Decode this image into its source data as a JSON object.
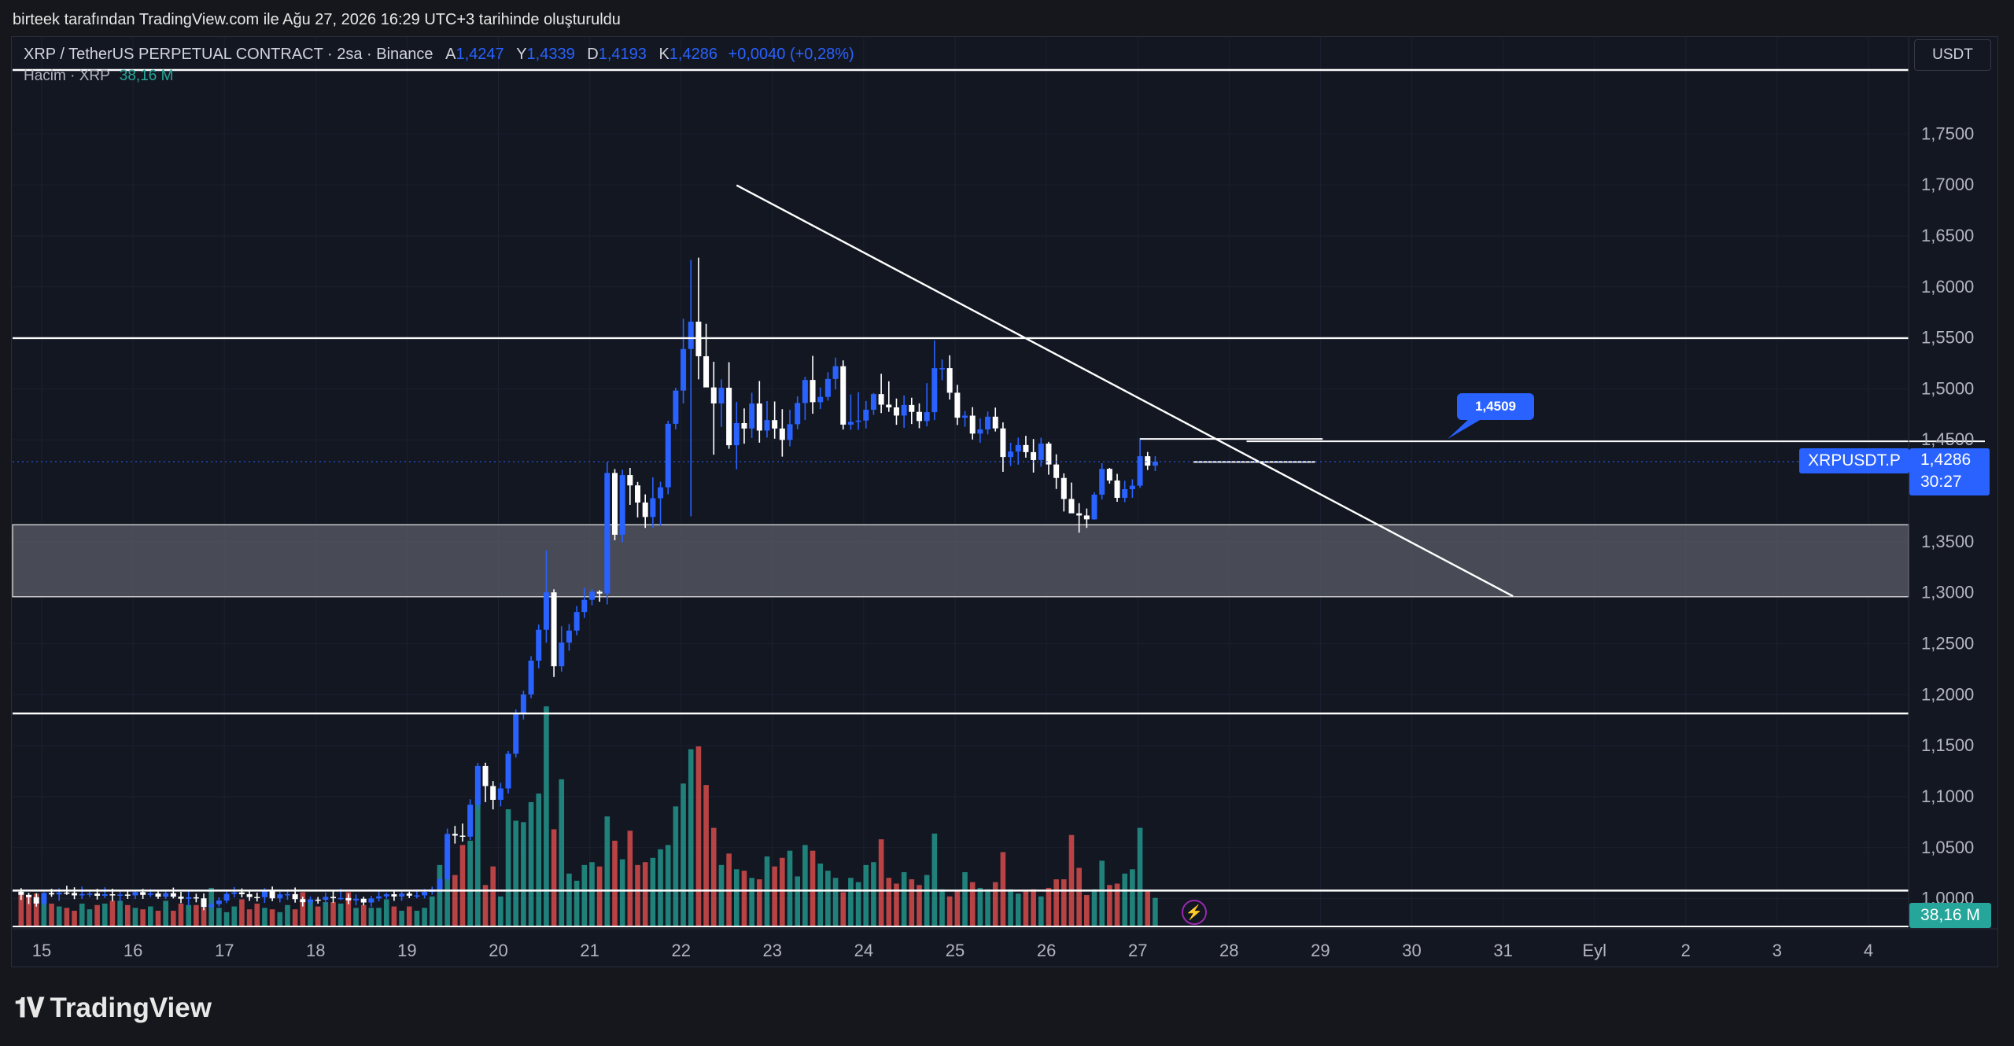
{
  "attribution": "birteek tarafından TradingView.com ile Ağu 27, 2026 16:29 UTC+3 tarihinde oluşturuldu",
  "legend": {
    "symbol": "XRP / TetherUS PERPETUAL CONTRACT · 2sa · Binance",
    "open_label": "A",
    "open": "1,4247",
    "high_label": "Y",
    "high": "1,4339",
    "low_label": "D",
    "low": "1,4193",
    "close_label": "K",
    "close": "1,4286",
    "change": "+0,0040 (+0,28%)"
  },
  "volume_legend": {
    "label": "Hacim · XRP",
    "value": "38,16 M"
  },
  "currency": "USDT",
  "symbol_tag": "XRPUSDT.P",
  "price_tag": {
    "price": "1,4286",
    "countdown": "30:27"
  },
  "volume_tag": "38,16 M",
  "annotation": "1,4509",
  "logo": "TradingView",
  "colors": {
    "up": "#2962ff",
    "down": "#ffffff",
    "vol_up": "#26a69a",
    "vol_down": "#ef5350",
    "background": "#131722",
    "zone": "#5d606b"
  },
  "chart_data": {
    "type": "candlestick",
    "x_tick_labels": [
      "15",
      "16",
      "17",
      "18",
      "19",
      "20",
      "21",
      "22",
      "23",
      "24",
      "25",
      "26",
      "27",
      "28",
      "29",
      "30",
      "31",
      "Eyl",
      "2",
      "3",
      "4"
    ],
    "y_tick_labels": [
      "1,7500",
      "1,7000",
      "1,6500",
      "1,6000",
      "1,5500",
      "1,5000",
      "1,4500",
      "1,3500",
      "1,3000",
      "1,2500",
      "1,2000",
      "1,1500",
      "1,1000",
      "1,0500",
      "1,0000"
    ],
    "y_ticks": [
      1.75,
      1.7,
      1.65,
      1.6,
      1.55,
      1.5,
      1.45,
      1.35,
      1.3,
      1.25,
      1.2,
      1.15,
      1.1,
      1.05,
      1.0
    ],
    "ylim": [
      0.9727,
      1.8135
    ],
    "candle_interval_hours": 2,
    "candles": [
      [
        1.0068,
        1.0103,
        0.9987,
        1.0037
      ],
      [
        1.0037,
        1.0056,
        0.9947,
        1.0014
      ],
      [
        1.0014,
        1.0052,
        0.9922,
        0.9952
      ],
      [
        0.9952,
        1.0064,
        0.993,
        1.0055
      ],
      [
        1.0055,
        1.0096,
        1.0018,
        1.0041
      ],
      [
        1.0041,
        1.0101,
        0.9978,
        1.0059
      ],
      [
        1.0059,
        1.0126,
        1.0037,
        1.0055
      ],
      [
        1.0055,
        1.0111,
        0.9995,
        1.0032
      ],
      [
        1.0032,
        1.0118,
        0.9998,
        1.0045
      ],
      [
        1.0045,
        1.0071,
        1.0015,
        1.0049
      ],
      [
        1.0049,
        1.0096,
        0.9991,
        1.0028
      ],
      [
        1.0028,
        1.0111,
        1.0006,
        1.0043
      ],
      [
        1.0043,
        1.0097,
        0.9975,
        1.0031
      ],
      [
        1.0031,
        1.0069,
        0.9966,
        1.004
      ],
      [
        1.004,
        1.0087,
        0.9997,
        1.0032
      ],
      [
        1.0032,
        1.0081,
        0.9996,
        1.0064
      ],
      [
        1.0064,
        1.0096,
        0.9997,
        1.0037
      ],
      [
        1.0037,
        1.0093,
        1.0016,
        1.005
      ],
      [
        1.005,
        1.0076,
        0.9998,
        1.0019
      ],
      [
        1.0019,
        1.0079,
        0.9996,
        1.0053
      ],
      [
        1.0053,
        1.0108,
        1.0002,
        1.0019
      ],
      [
        1.0019,
        1.0067,
        0.9956,
        0.9999
      ],
      [
        0.9999,
        1.0087,
        0.9931,
        1.0013
      ],
      [
        1.0013,
        1.0048,
        0.9964,
        1.0003
      ],
      [
        1.0003,
        1.005,
        0.9886,
        0.9917
      ],
      [
        0.9917,
        0.9985,
        0.9892,
        0.9946
      ],
      [
        0.9946,
        1.0012,
        0.9922,
        0.9981
      ],
      [
        0.9981,
        1.0068,
        0.9956,
        1.0046
      ],
      [
        1.0046,
        1.0114,
        1.0012,
        1.0061
      ],
      [
        1.0061,
        1.01,
        1.0012,
        1.0043
      ],
      [
        1.0043,
        1.0086,
        0.9978,
        1.0016
      ],
      [
        1.0016,
        1.0058,
        0.9972,
        1.0014
      ],
      [
        1.0014,
        1.0103,
        0.9958,
        1.0083
      ],
      [
        1.0083,
        1.0119,
        0.9976,
        1.0003
      ],
      [
        1.0003,
        1.0068,
        0.9963,
        1.0042
      ],
      [
        1.0042,
        1.0088,
        0.9988,
        1.0044
      ],
      [
        1.0044,
        1.0109,
        0.9961,
        0.9995
      ],
      [
        0.9995,
        1.0018,
        0.9923,
        0.9965
      ],
      [
        0.9965,
        1.0021,
        0.9933,
        0.999
      ],
      [
        0.999,
        1.0016,
        0.995,
        0.9988
      ],
      [
        0.9988,
        1.006,
        0.9939,
        1.0017
      ],
      [
        1.0017,
        1.0077,
        0.9958,
        1.0004
      ],
      [
        1.0004,
        1.0096,
        0.9986,
        1.0006
      ],
      [
        1.0006,
        1.0048,
        0.9945,
        0.9983
      ],
      [
        0.9983,
        1.0041,
        0.9934,
        0.9999
      ],
      [
        0.9999,
        1.0018,
        0.9934,
        0.9962
      ],
      [
        0.9962,
        1.0027,
        0.9918,
        1.0002
      ],
      [
        1.0002,
        1.0087,
        0.9973,
        1.0022
      ],
      [
        1.0022,
        1.0056,
        0.9999,
        1.0043
      ],
      [
        1.0043,
        1.0082,
        0.9978,
        1.0021
      ],
      [
        1.0021,
        1.0068,
        0.9979,
        1.0049
      ],
      [
        1.0049,
        1.0068,
        1.0005,
        1.0029
      ],
      [
        1.0029,
        1.0089,
        1.0003,
        1.0032
      ],
      [
        1.0032,
        1.0094,
        1.0002,
        1.0066
      ],
      [
        1.0066,
        1.0117,
        1.0038,
        1.0091
      ],
      [
        1.0091,
        1.0212,
        1.0057,
        1.0191
      ],
      [
        1.0191,
        1.0687,
        1.0158,
        1.0635
      ],
      [
        1.0635,
        1.0713,
        1.054,
        1.0618
      ],
      [
        1.0618,
        1.0736,
        1.0559,
        1.0608
      ],
      [
        1.0608,
        1.0974,
        1.0574,
        1.0921
      ],
      [
        1.0921,
        1.1331,
        1.0875,
        1.1301
      ],
      [
        1.1301,
        1.1333,
        1.0946,
        1.1104
      ],
      [
        1.1104,
        1.1153,
        1.0875,
        1.0969
      ],
      [
        1.0969,
        1.1135,
        1.0905,
        1.1081
      ],
      [
        1.1081,
        1.1448,
        1.1031,
        1.1421
      ],
      [
        1.1421,
        1.1855,
        1.1384,
        1.1819
      ],
      [
        1.1819,
        1.2039,
        1.1757,
        1.2002
      ],
      [
        1.2002,
        1.2378,
        1.1965,
        1.2334
      ],
      [
        1.2334,
        1.2688,
        1.2259,
        1.2637
      ],
      [
        1.2637,
        1.3416,
        1.2511,
        1.3004
      ],
      [
        1.3004,
        1.3034,
        1.2174,
        1.2279
      ],
      [
        1.2279,
        1.2672,
        1.2226,
        1.2512
      ],
      [
        1.2512,
        1.2693,
        1.2432,
        1.2629
      ],
      [
        1.2629,
        1.2869,
        1.2583,
        1.2811
      ],
      [
        1.2811,
        1.3049,
        1.2753,
        1.2931
      ],
      [
        1.2931,
        1.3034,
        1.2877,
        1.301
      ],
      [
        1.301,
        1.3026,
        1.2912,
        1.2992
      ],
      [
        1.2992,
        1.4283,
        1.2886,
        1.4175
      ],
      [
        1.4175,
        1.4213,
        1.3515,
        1.3569
      ],
      [
        1.3569,
        1.4207,
        1.3495,
        1.4154
      ],
      [
        1.4154,
        1.4224,
        1.3862,
        1.4053
      ],
      [
        1.4053,
        1.4087,
        1.3739,
        1.3885
      ],
      [
        1.3885,
        1.3965,
        1.3636,
        1.3743
      ],
      [
        1.3743,
        1.4132,
        1.364,
        1.3927
      ],
      [
        1.3927,
        1.4089,
        1.3658,
        1.4034
      ],
      [
        1.4034,
        1.4687,
        1.3966,
        1.4657
      ],
      [
        1.4657,
        1.5011,
        1.4603,
        1.4983
      ],
      [
        1.4983,
        1.5688,
        1.4856,
        1.5391
      ],
      [
        1.5391,
        1.6265,
        1.3751,
        1.5659
      ],
      [
        1.5659,
        1.6287,
        1.5093,
        1.532
      ],
      [
        1.532,
        1.5638,
        1.5017,
        1.5014
      ],
      [
        1.5014,
        1.5265,
        1.4354,
        1.4857
      ],
      [
        1.4857,
        1.5093,
        1.4627,
        1.5011
      ],
      [
        1.5011,
        1.5261,
        1.4412,
        1.4447
      ],
      [
        1.4447,
        1.4873,
        1.4211,
        1.4664
      ],
      [
        1.4664,
        1.4808,
        1.4462,
        1.4611
      ],
      [
        1.4611,
        1.4962,
        1.4518,
        1.4856
      ],
      [
        1.4856,
        1.5077,
        1.4472,
        1.4591
      ],
      [
        1.4591,
        1.488,
        1.4522,
        1.4693
      ],
      [
        1.4693,
        1.4876,
        1.4511,
        1.4611
      ],
      [
        1.4611,
        1.4801,
        1.4335,
        1.4499
      ],
      [
        1.4499,
        1.4795,
        1.4436,
        1.4653
      ],
      [
        1.4653,
        1.4926,
        1.4604,
        1.4861
      ],
      [
        1.4861,
        1.5118,
        1.4694,
        1.5087
      ],
      [
        1.5087,
        1.5324,
        1.4756,
        1.4869
      ],
      [
        1.4869,
        1.5014,
        1.4802,
        1.4921
      ],
      [
        1.4921,
        1.5162,
        1.4885,
        1.5097
      ],
      [
        1.5097,
        1.5306,
        1.4994,
        1.5222
      ],
      [
        1.5222,
        1.5279,
        1.4601,
        1.4649
      ],
      [
        1.4649,
        1.4945,
        1.4598,
        1.4676
      ],
      [
        1.4676,
        1.4967,
        1.4598,
        1.4689
      ],
      [
        1.4689,
        1.4881,
        1.4612,
        1.4795
      ],
      [
        1.4795,
        1.4959,
        1.4745,
        1.4948
      ],
      [
        1.4948,
        1.5148,
        1.4762,
        1.4845
      ],
      [
        1.4845,
        1.5074,
        1.4774,
        1.4818
      ],
      [
        1.4818,
        1.4905,
        1.4647,
        1.4738
      ],
      [
        1.4738,
        1.4935,
        1.4617,
        1.4842
      ],
      [
        1.4842,
        1.4913,
        1.4655,
        1.4774
      ],
      [
        1.4774,
        1.4857,
        1.4614,
        1.4684
      ],
      [
        1.4684,
        1.5056,
        1.4632,
        1.4771
      ],
      [
        1.4771,
        1.5474,
        1.4694,
        1.5203
      ],
      [
        1.5203,
        1.5289,
        1.5084,
        1.5203
      ],
      [
        1.5203,
        1.5329,
        1.4895,
        1.4962
      ],
      [
        1.4962,
        1.5039,
        1.4645,
        1.4717
      ],
      [
        1.4717,
        1.4782,
        1.4628,
        1.4737
      ],
      [
        1.4737,
        1.4821,
        1.4503,
        1.4561
      ],
      [
        1.4561,
        1.4711,
        1.4472,
        1.4602
      ],
      [
        1.4602,
        1.4778,
        1.4553,
        1.4727
      ],
      [
        1.4727,
        1.4816,
        1.4582,
        1.4612
      ],
      [
        1.4612,
        1.4671,
        1.4186,
        1.4331
      ],
      [
        1.4331,
        1.4472,
        1.4243,
        1.4385
      ],
      [
        1.4385,
        1.4522,
        1.4256,
        1.4449
      ],
      [
        1.4449,
        1.4539,
        1.4325,
        1.4379
      ],
      [
        1.4379,
        1.4508,
        1.4179,
        1.4302
      ],
      [
        1.4302,
        1.4521,
        1.4236,
        1.4463
      ],
      [
        1.4463,
        1.448,
        1.4158,
        1.4258
      ],
      [
        1.4258,
        1.4358,
        1.4018,
        1.4126
      ],
      [
        1.4126,
        1.4171,
        1.3797,
        1.392
      ],
      [
        1.392,
        1.4081,
        1.3786,
        1.3779
      ],
      [
        1.3779,
        1.3878,
        1.3589,
        1.3758
      ],
      [
        1.3758,
        1.3826,
        1.3636,
        1.372
      ],
      [
        1.372,
        1.3986,
        1.3716,
        1.3962
      ],
      [
        1.3962,
        1.4271,
        1.3915,
        1.4215
      ],
      [
        1.4215,
        1.4224,
        1.4071,
        1.4101
      ],
      [
        1.4101,
        1.4166,
        1.3892,
        1.3931
      ],
      [
        1.3931,
        1.4099,
        1.3888,
        1.4016
      ],
      [
        1.4016,
        1.4113,
        1.3932,
        1.405
      ],
      [
        1.405,
        1.4519,
        1.4028,
        1.4339
      ],
      [
        1.4339,
        1.4381,
        1.4204,
        1.4247
      ],
      [
        1.4247,
        1.4339,
        1.4193,
        1.4286
      ]
    ],
    "volume_ylim": [
      0,
      17.5
    ],
    "volumes": [
      2.2,
      2.2,
      2.3,
      1.7,
      1.6,
      1.4,
      1.3,
      1.1,
      1.6,
      1.2,
      1.5,
      1.6,
      1.8,
      1.8,
      1.5,
      1.3,
      1.2,
      1.4,
      1.1,
      1.8,
      1.1,
      1.6,
      1.5,
      1.5,
      1.3,
      2.7,
      1.3,
      1.0,
      1.4,
      1.9,
      1.2,
      1.6,
      1.3,
      1.2,
      1.0,
      1.5,
      1.2,
      2.4,
      1.9,
      1.4,
      1.7,
      1.7,
      1.6,
      2.4,
      1.3,
      1.5,
      1.3,
      1.3,
      1.9,
      1.4,
      1.1,
      1.4,
      1.1,
      1.3,
      2.1,
      4.3,
      5.7,
      3.6,
      5.7,
      6.0,
      9.1,
      2.9,
      4.2,
      2.1,
      8.2,
      7.4,
      7.3,
      8.7,
      9.3,
      15.4,
      6.8,
      10.3,
      3.7,
      3.2,
      4.3,
      4.5,
      4.2,
      7.7,
      6.0,
      4.7,
      6.7,
      4.3,
      4.5,
      4.8,
      5.4,
      5.7,
      8.4,
      10.0,
      12.4,
      12.6,
      9.9,
      6.9,
      4.3,
      5.1,
      4.0,
      3.9,
      3.4,
      3.3,
      4.9,
      4.2,
      4.8,
      5.3,
      3.5,
      5.7,
      5.3,
      4.4,
      3.9,
      3.4,
      2.4,
      3.4,
      3.1,
      4.3,
      4.5,
      6.1,
      3.4,
      3.0,
      3.8,
      3.3,
      2.9,
      3.6,
      6.5,
      2.6,
      2.1,
      2.5,
      3.8,
      3.1,
      2.7,
      2.6,
      3.1,
      5.2,
      2.6,
      2.3,
      2.5,
      2.6,
      2.1,
      2.7,
      3.3,
      3.3,
      6.4,
      4.1,
      2.2,
      2.6,
      4.6,
      2.9,
      3.0,
      3.7,
      4.0,
      6.9,
      2.5,
      2.0
    ],
    "horizontal_lines": [
      1.5497,
      1.1816,
      1.0079
    ],
    "zone": [
      1.2961,
      1.3667
    ],
    "trend_line": [
      [
        94,
        1.6997
      ],
      [
        196,
        1.2966
      ]
    ],
    "short_lines": [
      [
        [
          161,
          1.4485
        ],
        [
          258,
          1.4485
        ]
      ],
      [
        [
          147,
          1.4509
        ],
        [
          171,
          1.4509
        ]
      ],
      [
        [
          154,
          1.4283
        ],
        [
          170,
          1.4283
        ]
      ]
    ]
  }
}
